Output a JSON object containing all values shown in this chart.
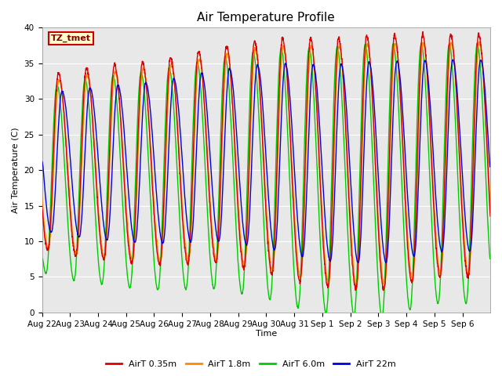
{
  "title": "Air Temperature Profile",
  "xlabel": "Time",
  "ylabel": "Air Temperature (C)",
  "ylim": [
    0,
    40
  ],
  "fig_facecolor": "#ffffff",
  "plot_bg_color": "#e8e8e8",
  "annotation_text": "TZ_tmet",
  "annotation_bg": "#ffffcc",
  "annotation_border": "#cc0000",
  "line_colors": [
    "#dd0000",
    "#ff8800",
    "#00cc00",
    "#0000dd"
  ],
  "line_labels": [
    "AirT 0.35m",
    "AirT 1.8m",
    "AirT 6.0m",
    "AirT 22m"
  ],
  "n_days": 16,
  "points_per_day": 144,
  "title_fontsize": 11,
  "label_fontsize": 8,
  "tick_fontsize": 7.5,
  "legend_fontsize": 8,
  "yticks": [
    0,
    5,
    10,
    15,
    20,
    25,
    30,
    35,
    40
  ],
  "grid_color": "#ffffff",
  "grid_lw": 0.8,
  "line_width": 1.0
}
